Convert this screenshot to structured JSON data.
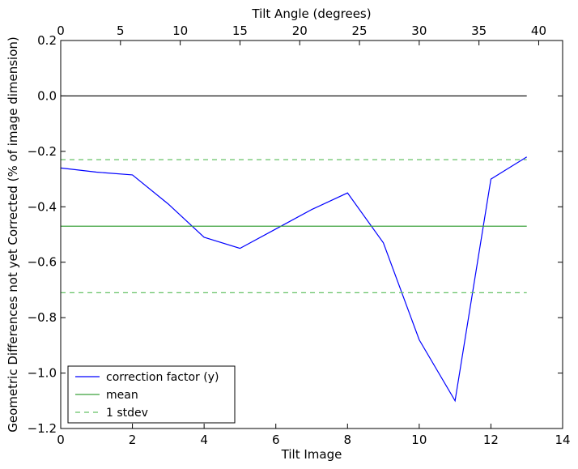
{
  "chart_data": {
    "type": "line",
    "xlabel": "Tilt Image",
    "ylabel": "Geometric Differences not yet Corrected (% of image dimension)",
    "x2label": "Tilt Angle (degrees)",
    "xlim": [
      0,
      14
    ],
    "ylim": [
      -1.2,
      0.2
    ],
    "x2lim": [
      0,
      42
    ],
    "xticks": [
      0,
      2,
      4,
      6,
      8,
      10,
      12,
      14
    ],
    "yticks": [
      0.2,
      0.0,
      -0.2,
      -0.4,
      -0.6,
      -0.8,
      -1.0,
      -1.2
    ],
    "x2ticks": [
      0,
      5,
      10,
      15,
      20,
      25,
      30,
      35,
      40
    ],
    "xtick_labels": [
      "0",
      "2",
      "4",
      "6",
      "8",
      "10",
      "12",
      "14"
    ],
    "ytick_labels": [
      "0.2",
      "0.0",
      "−0.2",
      "−0.4",
      "−0.6",
      "−0.8",
      "−1.0",
      "−1.2"
    ],
    "x2tick_labels": [
      "0",
      "5",
      "10",
      "15",
      "20",
      "25",
      "30",
      "35",
      "40"
    ],
    "grid": false,
    "legend_position": "lower-left",
    "series": [
      {
        "name": "correction factor (y)",
        "style": "solid",
        "color": "#0000ff",
        "x": [
          0,
          1,
          2,
          3,
          4,
          5,
          6,
          7,
          8,
          9,
          10,
          11,
          12,
          13
        ],
        "y": [
          -0.26,
          -0.275,
          -0.285,
          -0.39,
          -0.51,
          -0.55,
          -0.48,
          -0.41,
          -0.35,
          -0.53,
          -0.88,
          -1.1,
          -0.3,
          -0.22
        ]
      },
      {
        "name": "mean",
        "style": "solid",
        "color": "#3aa03a",
        "x": [
          0,
          13
        ],
        "y": [
          -0.47,
          -0.47
        ]
      },
      {
        "name": "1 stdev",
        "style": "dashed",
        "color": "#66c266",
        "x": [
          0,
          13
        ],
        "y": [
          -0.23,
          -0.23
        ],
        "x_lower": [
          0,
          13
        ],
        "y_lower": [
          -0.71,
          -0.71
        ]
      },
      {
        "name": "",
        "style": "solid",
        "color": "#000000",
        "x": [
          0,
          13
        ],
        "y": [
          0.0,
          0.0
        ]
      }
    ]
  }
}
